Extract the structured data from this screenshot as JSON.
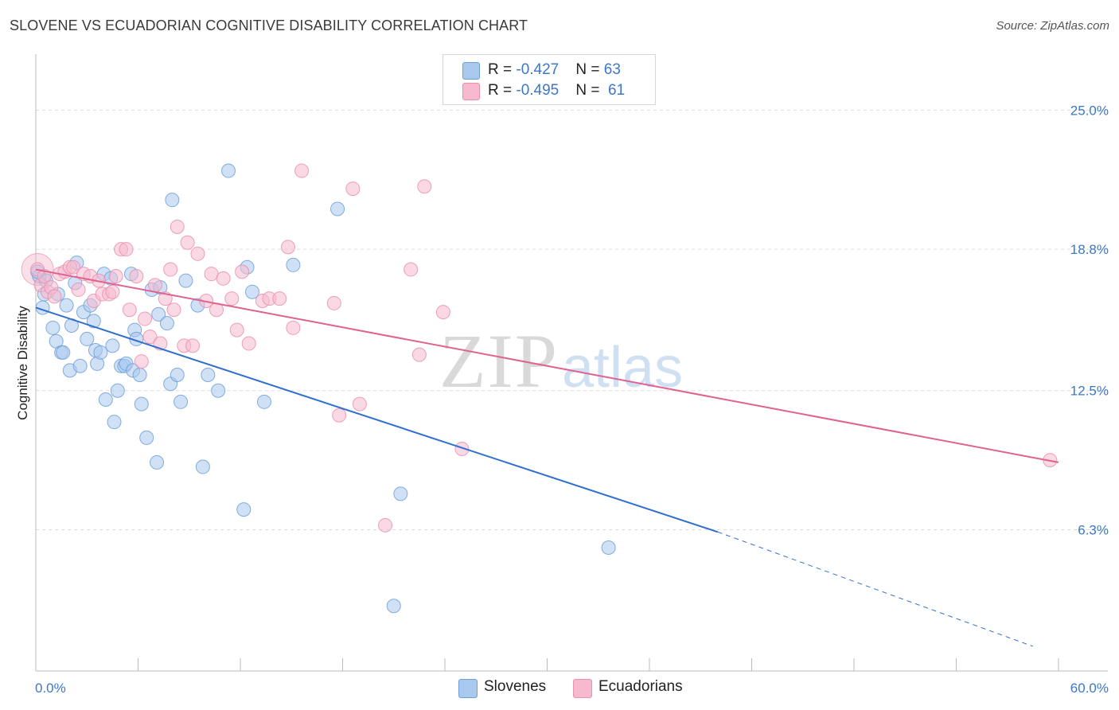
{
  "header": {
    "title": "SLOVENE VS ECUADORIAN COGNITIVE DISABILITY CORRELATION CHART",
    "source": "Source: ZipAtlas.com"
  },
  "stats": {
    "slovenes": {
      "r_label": "R = ",
      "r_value": "-0.427",
      "n_label": "N = ",
      "n_value": "63",
      "color": "#b8d3f1"
    },
    "ecuadorians": {
      "r_label": "R = ",
      "r_value": "-0.495",
      "n_label": "N = ",
      "n_value": "61",
      "color": "#f9c7d7"
    }
  },
  "legend": {
    "slovenes": "Slovenes",
    "ecuadorians": "Ecuadorians"
  },
  "watermark": {
    "zip": "ZIP",
    "atlas": "atlas"
  },
  "colors": {
    "slovenes_fill": "#a9c8ee",
    "slovenes_stroke": "#6f9fd8",
    "slovenes_line": "#2e6fd0",
    "ecuadorians_fill": "#f6b9cd",
    "ecuadorians_stroke": "#ea8fae",
    "ecuadorians_line": "#e0628f",
    "grid": "#dedede",
    "tick_label": "#3b78c8"
  },
  "chart_data": {
    "type": "scatter",
    "title": "SLOVENE VS ECUADORIAN COGNITIVE DISABILITY CORRELATION CHART",
    "ylabel": "Cognitive Disability",
    "xlabel": "",
    "xlim": [
      0,
      60
    ],
    "ylim": [
      0,
      27.5
    ],
    "x_tick_labels": [
      {
        "value": 0,
        "label": "0.0%"
      },
      {
        "value": 60,
        "label": "60.0%"
      }
    ],
    "y_tick_labels": [
      {
        "value": 6.3,
        "label": "6.3%"
      },
      {
        "value": 12.5,
        "label": "12.5%"
      },
      {
        "value": 18.8,
        "label": "18.8%"
      },
      {
        "value": 25.0,
        "label": "25.0%"
      }
    ],
    "x_minor_ticks": [
      6,
      12,
      18,
      24,
      30,
      36,
      42,
      48,
      54
    ],
    "grid": true,
    "legend_position": "bottom-center",
    "series": [
      {
        "name": "Slovenes",
        "points": [
          [
            0.2,
            17.6
          ],
          [
            0.4,
            16.2
          ],
          [
            0.5,
            16.8
          ],
          [
            0.6,
            17.4
          ],
          [
            1.0,
            15.3
          ],
          [
            1.2,
            14.7
          ],
          [
            1.3,
            16.8
          ],
          [
            1.5,
            14.2
          ],
          [
            1.6,
            14.2
          ],
          [
            1.8,
            16.3
          ],
          [
            2.0,
            13.4
          ],
          [
            2.1,
            15.4
          ],
          [
            2.3,
            17.3
          ],
          [
            2.4,
            18.2
          ],
          [
            2.6,
            13.6
          ],
          [
            2.8,
            16.0
          ],
          [
            3.0,
            14.8
          ],
          [
            3.2,
            16.3
          ],
          [
            3.4,
            15.6
          ],
          [
            3.5,
            14.3
          ],
          [
            3.6,
            13.7
          ],
          [
            3.8,
            14.2
          ],
          [
            4.0,
            17.7
          ],
          [
            4.1,
            12.1
          ],
          [
            4.4,
            17.5
          ],
          [
            4.5,
            14.5
          ],
          [
            4.6,
            11.1
          ],
          [
            4.8,
            12.5
          ],
          [
            5.0,
            13.6
          ],
          [
            5.2,
            13.6
          ],
          [
            5.3,
            13.7
          ],
          [
            5.6,
            17.7
          ],
          [
            5.7,
            13.4
          ],
          [
            5.8,
            15.2
          ],
          [
            5.9,
            14.8
          ],
          [
            6.1,
            13.2
          ],
          [
            6.2,
            11.9
          ],
          [
            6.5,
            10.4
          ],
          [
            6.8,
            17.0
          ],
          [
            7.1,
            9.3
          ],
          [
            7.2,
            15.9
          ],
          [
            7.3,
            17.1
          ],
          [
            7.7,
            15.5
          ],
          [
            7.9,
            12.8
          ],
          [
            8.0,
            21.0
          ],
          [
            8.3,
            13.2
          ],
          [
            8.5,
            12.0
          ],
          [
            8.8,
            17.4
          ],
          [
            9.5,
            16.3
          ],
          [
            9.8,
            9.1
          ],
          [
            10.1,
            13.2
          ],
          [
            10.7,
            12.5
          ],
          [
            11.3,
            22.3
          ],
          [
            12.2,
            7.2
          ],
          [
            12.4,
            18.0
          ],
          [
            12.7,
            16.9
          ],
          [
            13.4,
            12.0
          ],
          [
            15.1,
            18.1
          ],
          [
            17.7,
            20.6
          ],
          [
            21.4,
            7.9
          ],
          [
            33.6,
            5.5
          ],
          [
            21.0,
            2.9
          ],
          [
            0.1,
            17.8
          ]
        ]
      },
      {
        "name": "Ecuadorians",
        "points": [
          [
            0.1,
            17.9
          ],
          [
            0.3,
            17.2
          ],
          [
            0.5,
            17.6
          ],
          [
            0.7,
            16.9
          ],
          [
            0.9,
            17.1
          ],
          [
            1.1,
            16.7
          ],
          [
            1.4,
            17.7
          ],
          [
            1.7,
            17.8
          ],
          [
            2.0,
            18.0
          ],
          [
            2.2,
            18.0
          ],
          [
            2.5,
            17.0
          ],
          [
            2.8,
            17.7
          ],
          [
            3.2,
            17.6
          ],
          [
            3.4,
            16.5
          ],
          [
            3.7,
            17.4
          ],
          [
            3.9,
            16.8
          ],
          [
            4.3,
            16.8
          ],
          [
            4.5,
            16.9
          ],
          [
            4.7,
            17.6
          ],
          [
            5.0,
            18.8
          ],
          [
            5.3,
            18.8
          ],
          [
            5.5,
            16.1
          ],
          [
            5.9,
            17.6
          ],
          [
            6.2,
            13.8
          ],
          [
            6.4,
            15.7
          ],
          [
            6.7,
            14.9
          ],
          [
            7.0,
            17.2
          ],
          [
            7.3,
            14.6
          ],
          [
            7.6,
            16.6
          ],
          [
            7.9,
            17.9
          ],
          [
            8.1,
            16.1
          ],
          [
            8.3,
            19.8
          ],
          [
            8.7,
            14.5
          ],
          [
            8.9,
            19.1
          ],
          [
            9.2,
            14.5
          ],
          [
            9.5,
            18.6
          ],
          [
            10.0,
            16.5
          ],
          [
            10.3,
            17.7
          ],
          [
            10.6,
            16.1
          ],
          [
            11.0,
            17.5
          ],
          [
            11.5,
            16.6
          ],
          [
            11.8,
            15.2
          ],
          [
            12.1,
            17.8
          ],
          [
            12.5,
            14.6
          ],
          [
            13.3,
            16.5
          ],
          [
            13.7,
            16.6
          ],
          [
            14.3,
            16.6
          ],
          [
            14.8,
            18.9
          ],
          [
            15.1,
            15.3
          ],
          [
            15.6,
            22.3
          ],
          [
            17.5,
            16.4
          ],
          [
            17.8,
            11.4
          ],
          [
            18.6,
            21.5
          ],
          [
            19.0,
            11.9
          ],
          [
            20.5,
            6.5
          ],
          [
            22.0,
            17.9
          ],
          [
            22.5,
            14.1
          ],
          [
            22.8,
            21.6
          ],
          [
            23.9,
            16.0
          ],
          [
            25.0,
            9.9
          ],
          [
            59.5,
            9.4
          ]
        ]
      }
    ],
    "trend_lines": [
      {
        "series": "Slovenes",
        "x_start": 0,
        "y_start": 16.2,
        "x_end": 40,
        "y_end": 6.2,
        "dashed_to_x": 58.5,
        "dashed_to_y": 1.1
      },
      {
        "series": "Ecuadorians",
        "x_start": 0,
        "y_start": 17.9,
        "x_end": 60,
        "y_end": 9.3
      }
    ],
    "large_marker": {
      "series": "Ecuadorians",
      "x": 0.1,
      "y": 17.9
    }
  }
}
